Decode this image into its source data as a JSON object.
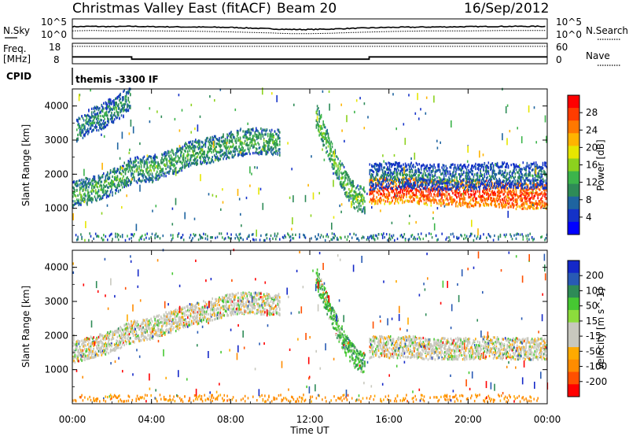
{
  "header": {
    "title": "Christmas Valley East (fitACF)",
    "beam": "Beam 20",
    "date": "16/Sep/2012"
  },
  "noise_panel": {
    "left_label": "N.Sky",
    "left_ticks": [
      "10^5",
      "10^0"
    ],
    "right_label": "N.Search",
    "right_ticks": [
      "10^5",
      "10^0"
    ]
  },
  "freq_panel": {
    "left_label_1": "Freq.",
    "left_label_2": "[MHz]",
    "left_ticks": [
      "18",
      "8"
    ],
    "right_label": "Nave",
    "right_ticks": [
      "60",
      "0"
    ]
  },
  "cpid_panel": {
    "label": "CPID",
    "value": "themis -3300 IF"
  },
  "x_axis": {
    "label": "Time UT",
    "ticks": [
      "00:00",
      "04:00",
      "08:00",
      "12:00",
      "16:00",
      "20:00",
      "00:00"
    ]
  },
  "power_colorbar": {
    "label": "Power [dB]",
    "ticks": [
      "28",
      "24",
      "20",
      "16",
      "12",
      "8",
      "4"
    ],
    "colors": [
      "#ff0000",
      "#ff3c00",
      "#ff7800",
      "#ffb400",
      "#e6e600",
      "#8cd21e",
      "#3cb44b",
      "#2e8b57",
      "#1e64a0",
      "#1432c8",
      "#0000ff"
    ]
  },
  "velocity_colorbar": {
    "label": "Velocity [m s^-1]",
    "ticks": [
      "200",
      "100",
      "50",
      "15",
      "-15",
      "-50",
      "-100",
      "-200"
    ],
    "colors": [
      "#1428c8",
      "#285ab4",
      "#2e8b57",
      "#46c832",
      "#8cdc3c",
      "#c8c8be",
      "#c8c8be",
      "#ffaa00",
      "#ff8c00",
      "#ff5000",
      "#ff0000"
    ]
  },
  "chart_data": [
    {
      "type": "line",
      "panel": "noise",
      "x": [
        0,
        1,
        2,
        3,
        4,
        6,
        8,
        10,
        11,
        12,
        13,
        14,
        16,
        18,
        20,
        22,
        24
      ],
      "series": [
        {
          "values": [
            3.2,
            3.3,
            3.2,
            3.3,
            3.2,
            3.1,
            3.0,
            2.6,
            2.4,
            2.4,
            2.5,
            2.7,
            3.0,
            3.1,
            3.2,
            3.3,
            3.3
          ]
        },
        {
          "values": [
            2.0,
            2.1,
            2.0,
            2.1,
            2.0,
            1.9,
            1.7,
            1.4,
            1.2,
            1.2,
            1.3,
            1.5,
            1.8,
            2.0,
            2.0,
            2.1,
            2.1
          ]
        }
      ],
      "ylim": [
        0,
        5
      ],
      "yscale": "log"
    },
    {
      "type": "line",
      "panel": "frequency",
      "x": [
        0,
        3,
        3,
        15,
        15,
        24
      ],
      "series": [
        {
          "values": [
            11.2,
            11.2,
            10.0,
            10.0,
            11.2,
            11.2
          ]
        },
        {
          "values": [
            16.8,
            16.8,
            16.8,
            16.8,
            16.8,
            16.8
          ]
        }
      ],
      "ylim": [
        8,
        18
      ]
    },
    {
      "type": "heatmap",
      "panel": "power",
      "ylabel": "Slant Range [km]",
      "xlim": [
        0,
        24
      ],
      "ylim": [
        0,
        4500
      ],
      "yticks": [
        1000,
        2000,
        3000,
        4000
      ],
      "zlim": [
        0,
        30
      ],
      "bands": [
        {
          "x": [
            0,
            1,
            2,
            3,
            4,
            5,
            6,
            7,
            8,
            9,
            10,
            10.5
          ],
          "y": [
            1400,
            1550,
            1750,
            2100,
            2150,
            2350,
            2600,
            2700,
            2850,
            2950,
            2950,
            2900
          ],
          "power": 10
        },
        {
          "x": [
            0.2,
            0.8,
            1.5,
            2.5,
            2.9
          ],
          "y": [
            3300,
            3500,
            3700,
            4000,
            4300
          ],
          "power": 8
        },
        {
          "x": [
            12.3,
            12.8,
            13.3,
            13.8,
            14.3,
            14.8
          ],
          "y": [
            3700,
            3000,
            2300,
            1700,
            1300,
            1200
          ],
          "power": 12
        },
        {
          "x": [
            15,
            16,
            17,
            18,
            19,
            20,
            21,
            22,
            23,
            24
          ],
          "y": [
            1500,
            1500,
            1550,
            1450,
            1450,
            1400,
            1450,
            1350,
            1350,
            1350
          ],
          "power": 26
        },
        {
          "x": [
            15,
            16,
            17,
            18,
            19,
            20,
            21,
            22,
            23,
            24
          ],
          "y": [
            1900,
            1950,
            1950,
            1900,
            1900,
            1900,
            1950,
            1950,
            1950,
            1950
          ],
          "power": 6
        },
        {
          "x": [
            0,
            1,
            2,
            3,
            4,
            5,
            6,
            7,
            8,
            9,
            10,
            11,
            12,
            13,
            14,
            15,
            16,
            17,
            18,
            19,
            20,
            21,
            22,
            23,
            24
          ],
          "y": [
            150,
            150,
            150,
            150,
            150,
            150,
            150,
            150,
            150,
            150,
            150,
            150,
            150,
            150,
            150,
            150,
            150,
            150,
            150,
            150,
            150,
            150,
            150,
            150,
            150
          ],
          "power": 8
        }
      ]
    },
    {
      "type": "heatmap",
      "panel": "velocity",
      "ylabel": "Slant Range [km]",
      "xlim": [
        0,
        24
      ],
      "ylim": [
        0,
        4500
      ],
      "yticks": [
        1000,
        2000,
        3000,
        4000
      ],
      "zlim": [
        -200,
        200
      ],
      "bands": [
        {
          "x": [
            0,
            1,
            2,
            3,
            4,
            5,
            6,
            7,
            8,
            9,
            10,
            10.5
          ],
          "y": [
            1500,
            1650,
            1800,
            2100,
            2200,
            2400,
            2600,
            2750,
            2900,
            2950,
            2900,
            2900
          ],
          "velocity": 0
        },
        {
          "x": [
            12.3,
            12.8,
            13.3,
            13.8,
            14.3,
            14.8
          ],
          "y": [
            3700,
            3000,
            2300,
            1700,
            1300,
            1200
          ],
          "velocity": 30
        },
        {
          "x": [
            15,
            16,
            17,
            18,
            19,
            20,
            21,
            22,
            23,
            24
          ],
          "y": [
            1650,
            1650,
            1650,
            1600,
            1600,
            1600,
            1650,
            1600,
            1600,
            1600
          ],
          "velocity": 0
        },
        {
          "x": [
            0,
            1,
            2,
            3,
            4,
            5,
            6,
            7,
            8,
            9,
            10,
            11,
            12,
            13,
            14,
            15,
            16,
            17,
            18,
            19,
            20,
            21,
            22,
            23,
            24
          ],
          "y": [
            150,
            150,
            150,
            150,
            150,
            150,
            150,
            150,
            150,
            150,
            150,
            150,
            150,
            150,
            150,
            150,
            150,
            150,
            150,
            150,
            150,
            150,
            150,
            150,
            150
          ],
          "velocity": -60
        }
      ]
    }
  ]
}
